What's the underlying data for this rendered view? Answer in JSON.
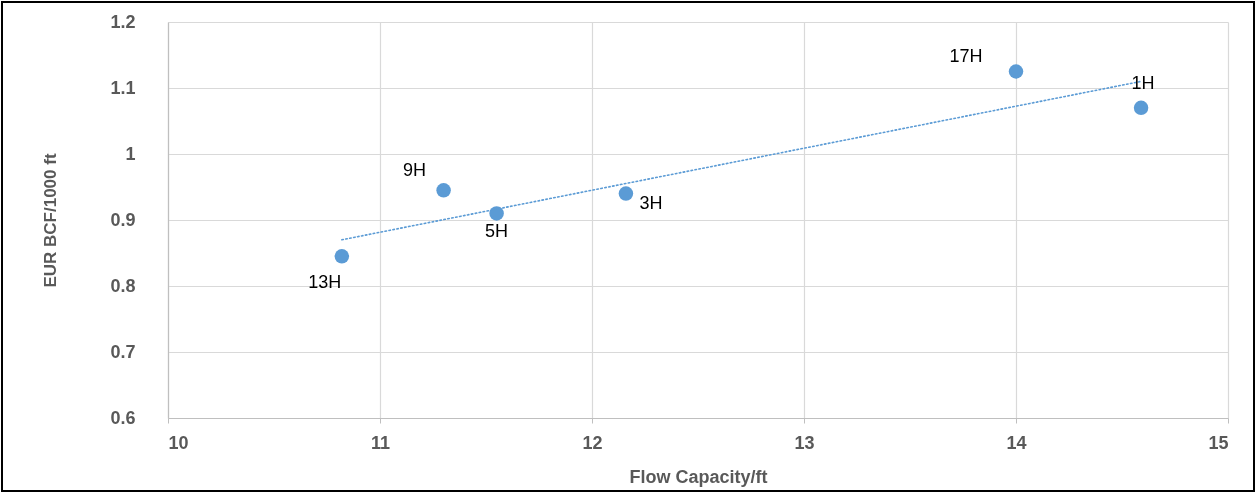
{
  "chart_data": {
    "type": "scatter",
    "xlabel": "Flow Capacity/ft",
    "ylabel": "EUR BCF/1000 ft",
    "xlim": [
      10,
      15
    ],
    "xticks": [
      10,
      11,
      12,
      13,
      14,
      15
    ],
    "ylim": [
      0.6,
      1.2
    ],
    "yticks": [
      0.6,
      0.7,
      0.8,
      0.9,
      1,
      1.1,
      1.2
    ],
    "grid": true,
    "marker": "circle",
    "series": [
      {
        "color": "#5b9bd5",
        "x": [
          10.82,
          11.3,
          11.55,
          12.16,
          14.0,
          14.59
        ],
        "values": [
          0.845,
          0.945,
          0.91,
          0.94,
          1.125,
          1.07
        ]
      },
      {
        "type": "line",
        "color": "#5b9bd5",
        "line_style": "dotted",
        "marker": "none",
        "x": [
          10.82,
          14.59
        ],
        "values": [
          0.87,
          1.11
        ]
      }
    ],
    "annotations": [
      {
        "text": "13H",
        "x": 10.82,
        "y": 0.845
      },
      {
        "text": "9H",
        "x": 11.3,
        "y": 0.945
      },
      {
        "text": "5H",
        "x": 11.55,
        "y": 0.91
      },
      {
        "text": "3H",
        "x": 12.16,
        "y": 0.94
      },
      {
        "text": "17H",
        "x": 14.0,
        "y": 1.125
      },
      {
        "text": "1H",
        "x": 14.59,
        "y": 1.07
      }
    ]
  }
}
